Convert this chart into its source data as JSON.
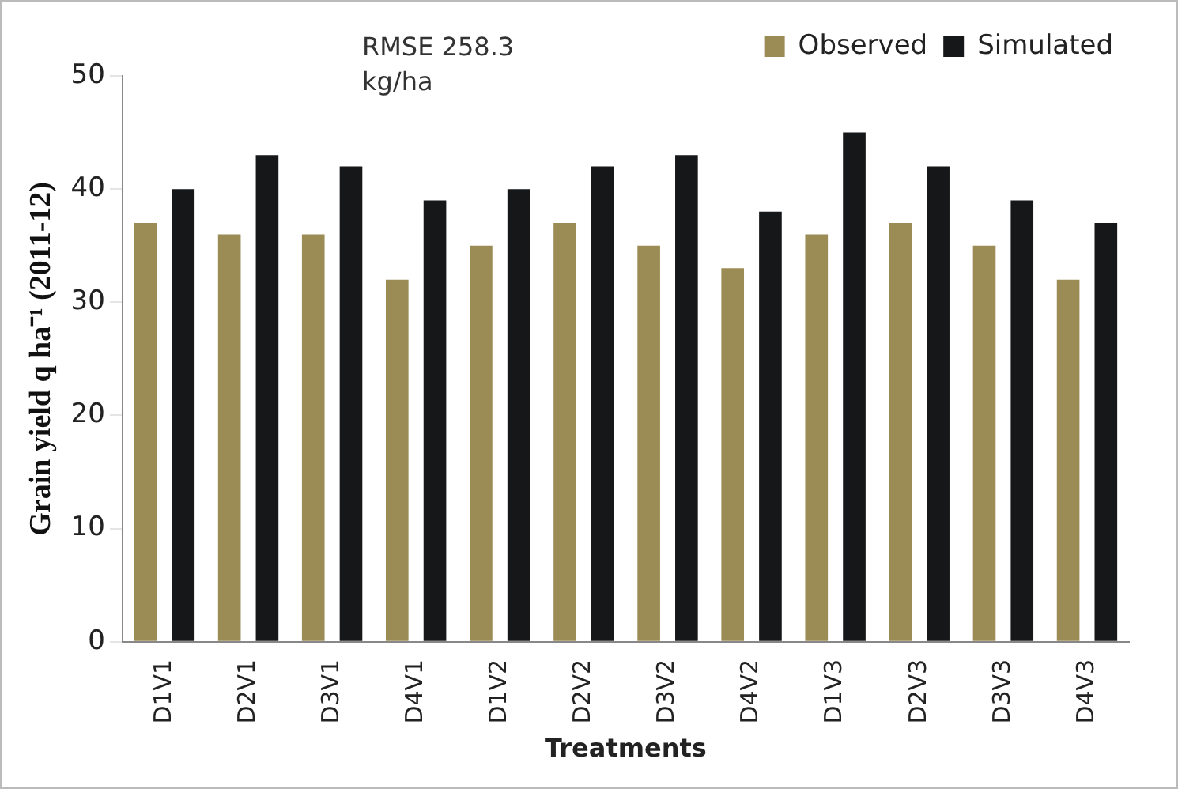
{
  "chart_data": {
    "type": "bar",
    "xlabel": "Treatments",
    "ylabel": "Grain yield q ha⁻¹ (2011-12)",
    "categories": [
      "D1V1",
      "D2V1",
      "D3V1",
      "D4V1",
      "D1V2",
      "D2V2",
      "D3V2",
      "D4V2",
      "D1V3",
      "D2V3",
      "D3V3",
      "D4V3"
    ],
    "series": [
      {
        "name": "Observed",
        "color": "#9b8c55",
        "values": [
          37,
          36,
          36,
          32,
          35,
          37,
          35,
          33,
          36,
          37,
          35,
          32
        ]
      },
      {
        "name": "Simulated",
        "color": "#151718",
        "values": [
          40,
          43,
          42,
          39,
          40,
          42,
          43,
          38,
          45,
          42,
          39,
          37
        ]
      }
    ],
    "ylim": [
      0,
      50
    ],
    "yticks": [
      0,
      10,
      20,
      30,
      40,
      50
    ],
    "grid": false,
    "legend": "top right",
    "annotations": [
      "RMSE  258.3 kg/ha"
    ]
  }
}
